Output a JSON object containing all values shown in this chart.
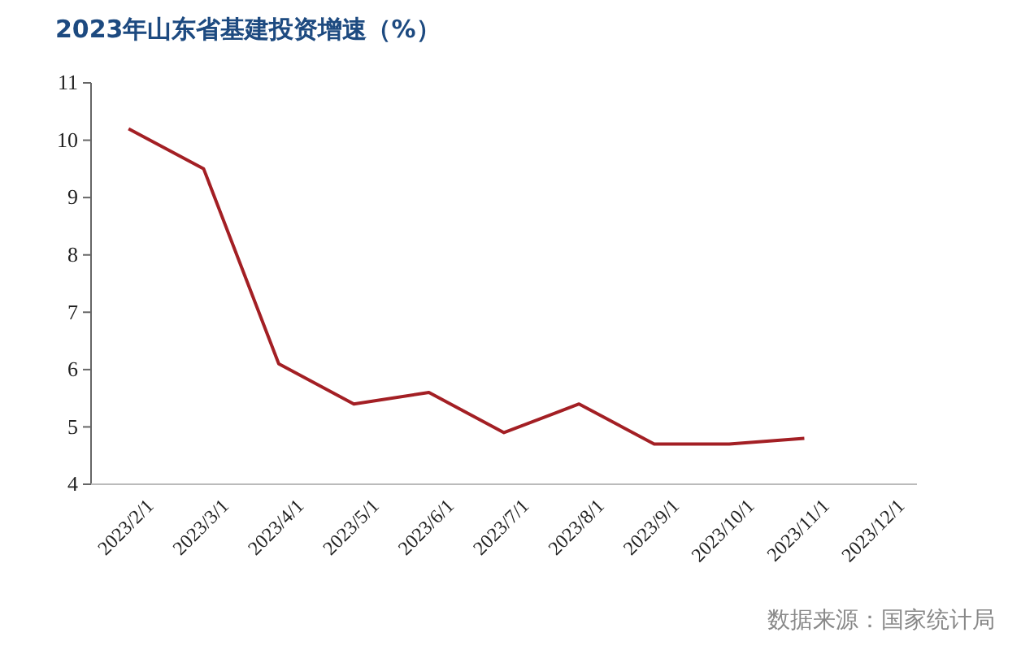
{
  "chart_data": {
    "type": "line",
    "title": "2023年山东省基建投资增速（%）",
    "categories": [
      "2023/2/1",
      "2023/3/1",
      "2023/4/1",
      "2023/5/1",
      "2023/6/1",
      "2023/7/1",
      "2023/8/1",
      "2023/9/1",
      "2023/10/1",
      "2023/11/1",
      "2023/12/1"
    ],
    "series": [
      {
        "color": "#a31f24",
        "values": [
          10.2,
          9.5,
          6.1,
          5.4,
          5.6,
          4.9,
          5.4,
          4.7,
          4.7,
          4.8,
          null
        ]
      }
    ],
    "ylim": [
      4,
      11
    ],
    "yticks": [
      4,
      5,
      6,
      7,
      8,
      9,
      10,
      11
    ],
    "grid": false,
    "marker": "none",
    "line_style": "solid",
    "annotations": [
      "数据来源：国家统计局"
    ]
  }
}
